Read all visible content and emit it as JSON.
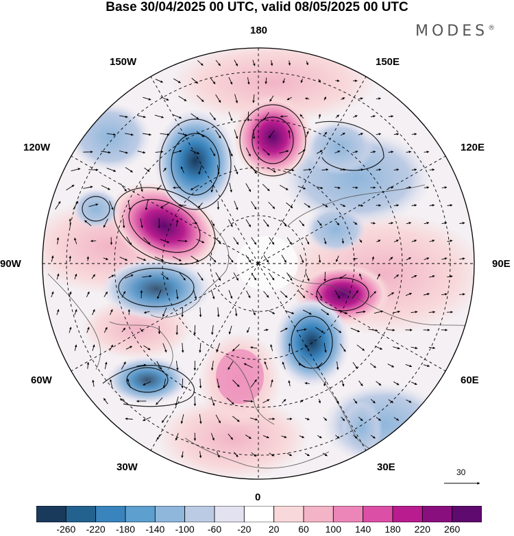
{
  "header": {
    "title": "Base 30/04/2025 00 UTC, valid 08/05/2025 00 UTC",
    "brand": "MODES",
    "brand_mark": "®"
  },
  "map": {
    "projection": "north polar stereographic",
    "longitude_labels": {
      "top": "180",
      "top_left": "150W",
      "top_right": "150E",
      "upper_left": "120W",
      "upper_right": "120E",
      "left": "90W",
      "right": "90E",
      "lower_left": "60W",
      "lower_right": "60E",
      "bottom_left": "30W",
      "bottom_right": "30E",
      "bottom": "0"
    },
    "reference_vector": "30"
  },
  "colorbar": {
    "ticks": [
      "-260",
      "-220",
      "-180",
      "-140",
      "-100",
      "-60",
      "-20",
      "20",
      "60",
      "100",
      "140",
      "180",
      "220",
      "260"
    ],
    "colors": [
      "#1a3a5c",
      "#23628f",
      "#3a84bd",
      "#5d9fce",
      "#8fb6db",
      "#bccbe4",
      "#e2e2f0",
      "#ffffff",
      "#f8d8da",
      "#f2b4c6",
      "#ec86b8",
      "#dc4fa6",
      "#b81c8e",
      "#8a0f7e",
      "#5e0a6e"
    ]
  }
}
